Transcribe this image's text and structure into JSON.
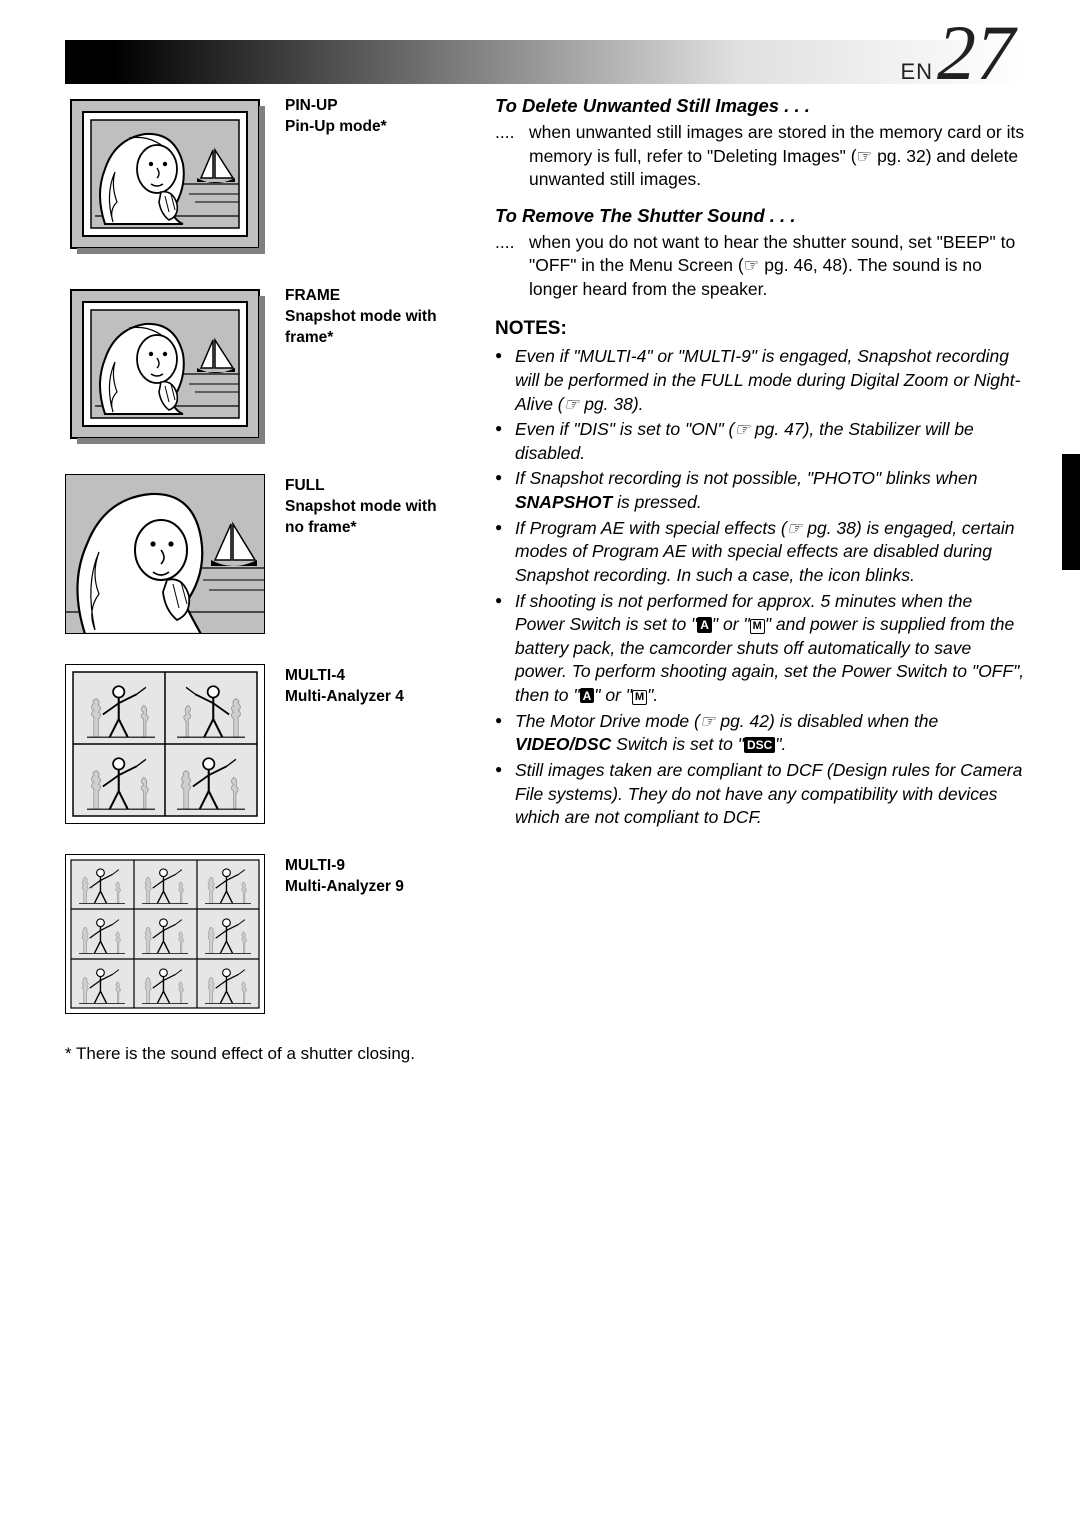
{
  "header": {
    "lang": "EN",
    "page": "27"
  },
  "modes": [
    {
      "title": "PIN-UP",
      "sub": "Pin-Up mode*",
      "kind": "woman-framed"
    },
    {
      "title": "FRAME",
      "sub": "Snapshot mode with frame*",
      "kind": "woman-framed"
    },
    {
      "title": "FULL",
      "sub": "Snapshot mode with no frame*",
      "kind": "woman-full"
    },
    {
      "title": "MULTI-4",
      "sub": "Multi-Analyzer 4",
      "kind": "grid4"
    },
    {
      "title": "MULTI-9",
      "sub": "Multi-Analyzer 9",
      "kind": "grid9"
    }
  ],
  "footnote": "* There is the sound effect of a shutter closing.",
  "sections": {
    "delete_head": "To Delete Unwanted Still Images . . .",
    "delete_body": "when unwanted still images are stored in the memory card or its memory is full, refer to \"Deleting Images\" (☞ pg. 32) and delete unwanted still images.",
    "shutter_head": "To Remove The Shutter Sound . . .",
    "shutter_body": "when you do not want to hear the shutter sound, set \"BEEP\" to \"OFF\" in the Menu Screen (☞ pg. 46, 48). The sound is no longer heard from the speaker.",
    "notes_head": "NOTES:",
    "notes": [
      "Even if \"MULTI-4\" or \"MULTI-9\" is engaged, Snapshot recording will be performed in the FULL mode during Digital Zoom or Night-Alive (☞ pg. 38).",
      "Even if \"DIS\" is set to \"ON\" (☞ pg. 47), the Stabilizer will be disabled.",
      "If Snapshot recording is not possible, \"PHOTO\" blinks when <b>SNAPSHOT</b> is pressed.",
      "If Program AE with special effects (☞ pg. 38) is engaged, certain modes of Program AE with special effects are disabled during Snapshot recording. In such a case, the icon blinks.",
      "If shooting is not performed for approx. 5 minutes when the Power Switch is set to \"[A]\" or \"[M]\" and power is supplied from the battery pack, the camcorder shuts off automatically to save power. To perform shooting again, set the Power Switch to \"OFF\", then to \"[A]\" or \"[M]\".",
      "The Motor Drive mode (☞ pg. 42) is disabled when the <b>VIDEO/DSC</b> Switch is set to \"[DSC]\".",
      "Still images taken are compliant to DCF (Design rules for Camera File systems). They do not have any compatibility with devices which are not compliant to DCF."
    ]
  }
}
